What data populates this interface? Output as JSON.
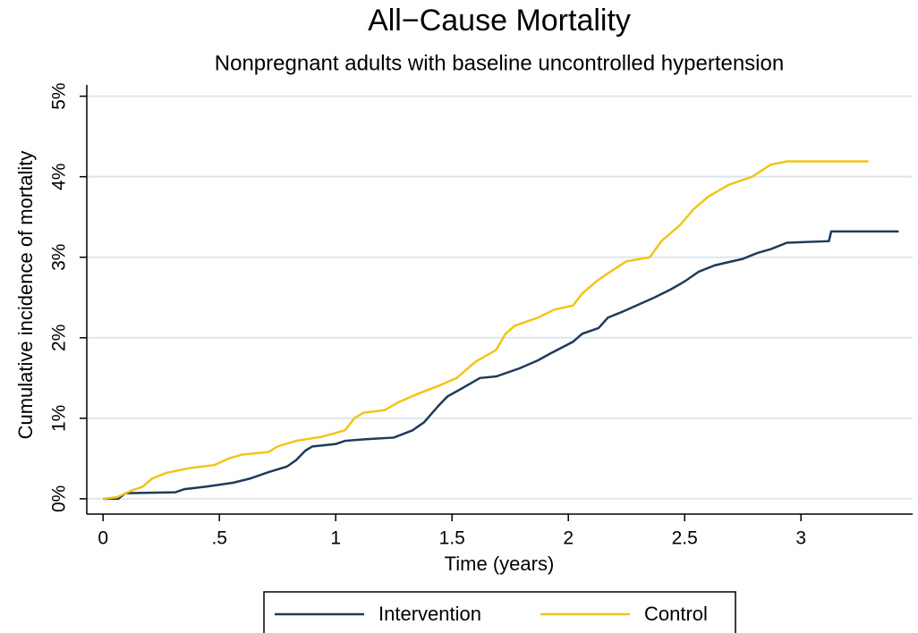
{
  "chart_data": {
    "type": "line",
    "title": "All−Cause Mortality",
    "subtitle": "Nonpregnant adults with baseline uncontrolled hypertension",
    "xlabel": "Time (years)",
    "ylabel": "Cumulative incidence of mortality",
    "xlim": [
      -0.07,
      3.48
    ],
    "ylim": [
      -0.19,
      5.14
    ],
    "xticks": [
      0,
      {
        "value": 0.5,
        "label": ".5"
      },
      1,
      1.5,
      2,
      2.5,
      3
    ],
    "yticks": [
      {
        "value": 0,
        "label": "0%"
      },
      {
        "value": 1,
        "label": "1%"
      },
      {
        "value": 2,
        "label": "2%"
      },
      {
        "value": 3,
        "label": "3%"
      },
      {
        "value": 4,
        "label": "4%"
      },
      {
        "value": 5,
        "label": "5%"
      }
    ],
    "grid": true,
    "legend": "bottom",
    "series": [
      {
        "name": "Intervention",
        "color": "#1f3a5a",
        "x": [
          0,
          0.065,
          0.096,
          0.31,
          0.35,
          0.44,
          0.56,
          0.63,
          0.71,
          0.79,
          0.83,
          0.87,
          0.9,
          1.0,
          1.04,
          1.13,
          1.25,
          1.33,
          1.38,
          1.44,
          1.48,
          1.56,
          1.62,
          1.69,
          1.79,
          1.87,
          1.92,
          2.02,
          2.06,
          2.13,
          2.17,
          2.23,
          2.37,
          2.44,
          2.5,
          2.56,
          2.63,
          2.75,
          2.81,
          2.87,
          2.94,
          3.12,
          3.13,
          3.42
        ],
        "values": [
          0,
          0,
          0.07,
          0.08,
          0.12,
          0.15,
          0.2,
          0.25,
          0.33,
          0.4,
          0.48,
          0.6,
          0.65,
          0.68,
          0.72,
          0.74,
          0.76,
          0.85,
          0.95,
          1.15,
          1.27,
          1.4,
          1.5,
          1.52,
          1.62,
          1.72,
          1.8,
          1.95,
          2.05,
          2.12,
          2.25,
          2.32,
          2.5,
          2.6,
          2.7,
          2.82,
          2.9,
          2.98,
          3.05,
          3.1,
          3.18,
          3.2,
          3.32,
          3.32
        ]
      },
      {
        "name": "Control",
        "color": "#f2c417",
        "x": [
          0,
          0.06,
          0.12,
          0.17,
          0.21,
          0.27,
          0.37,
          0.48,
          0.54,
          0.6,
          0.71,
          0.75,
          0.83,
          0.94,
          1.04,
          1.08,
          1.12,
          1.21,
          1.27,
          1.35,
          1.44,
          1.52,
          1.6,
          1.69,
          1.73,
          1.77,
          1.87,
          1.94,
          2.02,
          2.06,
          2.12,
          2.17,
          2.25,
          2.35,
          2.4,
          2.48,
          2.54,
          2.6,
          2.69,
          2.79,
          2.87,
          2.94,
          3.29
        ],
        "values": [
          0,
          0.02,
          0.1,
          0.15,
          0.25,
          0.32,
          0.38,
          0.42,
          0.5,
          0.55,
          0.58,
          0.65,
          0.72,
          0.77,
          0.85,
          1.0,
          1.07,
          1.1,
          1.2,
          1.3,
          1.4,
          1.5,
          1.7,
          1.85,
          2.05,
          2.15,
          2.25,
          2.35,
          2.4,
          2.55,
          2.7,
          2.8,
          2.95,
          3.0,
          3.2,
          3.4,
          3.6,
          3.75,
          3.9,
          4.0,
          4.15,
          4.19,
          4.19
        ]
      }
    ]
  }
}
